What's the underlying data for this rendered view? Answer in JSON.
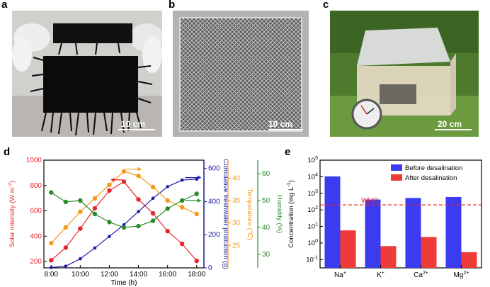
{
  "panels": {
    "a": {
      "letter": "a",
      "scale": "10 cm"
    },
    "b": {
      "letter": "b",
      "scale": "10 cm"
    },
    "c": {
      "letter": "c",
      "scale": "20 cm"
    },
    "d": {
      "letter": "d"
    },
    "e": {
      "letter": "e"
    }
  },
  "colors": {
    "solar": "#e8252b",
    "freshwater": "#1c1ca8",
    "temperature": "#f39a1a",
    "humidity": "#2a8c2a",
    "before": "#3b3bf0",
    "after": "#ef3a3a",
    "who": "#e8252b"
  },
  "chart_data": [
    {
      "type": "line",
      "xlabel": "Time (h)",
      "x_ticks": [
        "8:00",
        "10:00",
        "12:00",
        "14:00",
        "16:00",
        "18:00"
      ],
      "x": [
        8,
        9,
        10,
        11,
        12,
        13,
        14,
        15,
        16,
        17,
        18
      ],
      "xlim": [
        7.5,
        18.5
      ],
      "axes": [
        {
          "ylabel": "Solar intensity (W m",
          "ylabel_sup": "-2",
          "ylabel_end": ")",
          "ylim": [
            150,
            1000
          ],
          "ticks": [
            "200",
            "400",
            "600",
            "800",
            "1000"
          ]
        },
        {
          "ylabel": "Cumulative freshwater production (g)",
          "ylim": [
            0,
            650
          ],
          "ticks": [
            "0",
            "200",
            "400",
            "600"
          ]
        },
        {
          "ylabel": "Temperature (",
          "ylabel_sym": "℃",
          "ylabel_end": ")",
          "ylim": [
            20,
            44
          ],
          "ticks": [
            "25",
            "30",
            "35",
            "40"
          ]
        },
        {
          "ylabel": "Humidity (%)",
          "ylim": [
            25,
            65
          ],
          "ticks": [
            "30",
            "40",
            "50",
            "60"
          ]
        }
      ],
      "series": [
        {
          "axis": 0,
          "values": [
            210,
            310,
            460,
            620,
            760,
            830,
            690,
            580,
            440,
            340,
            205
          ]
        },
        {
          "axis": 1,
          "values": [
            2,
            10,
            55,
            120,
            190,
            260,
            340,
            420,
            490,
            530,
            535
          ]
        },
        {
          "axis": 2,
          "values": [
            25.5,
            29,
            32.5,
            35.5,
            38.5,
            41.5,
            40.5,
            38,
            35,
            33.5,
            32
          ]
        },
        {
          "axis": 3,
          "values": [
            53,
            49.5,
            50,
            45,
            42,
            40,
            40.5,
            42.5,
            47,
            50,
            52.5
          ]
        }
      ]
    },
    {
      "type": "bar",
      "ylabel": "Concentration (mg L",
      "ylabel_sup": "-1",
      "ylabel_end": ")",
      "yscale": "log",
      "ylim_exp": [
        -1.5,
        5
      ],
      "y_ticks": [
        {
          "base": "10",
          "exp": "-1"
        },
        {
          "base": "10",
          "exp": "0"
        },
        {
          "base": "10",
          "exp": "1"
        },
        {
          "base": "10",
          "exp": "2"
        },
        {
          "base": "10",
          "exp": "3"
        },
        {
          "base": "10",
          "exp": "4"
        },
        {
          "base": "10",
          "exp": "5"
        }
      ],
      "categories": [
        {
          "base": "Na",
          "sup": "+"
        },
        {
          "base": "K",
          "sup": "+"
        },
        {
          "base": "Ca",
          "sup": "2+"
        },
        {
          "base": "Mg",
          "sup": "2+"
        }
      ],
      "series": [
        {
          "name": "Before desalination",
          "values": [
            10500,
            420,
            520,
            600
          ]
        },
        {
          "name": "After desalination",
          "values": [
            5.8,
            0.65,
            2.3,
            0.28
          ]
        }
      ],
      "reference_line": {
        "label": "WHO",
        "value": 200
      },
      "legend": "top-right"
    }
  ]
}
